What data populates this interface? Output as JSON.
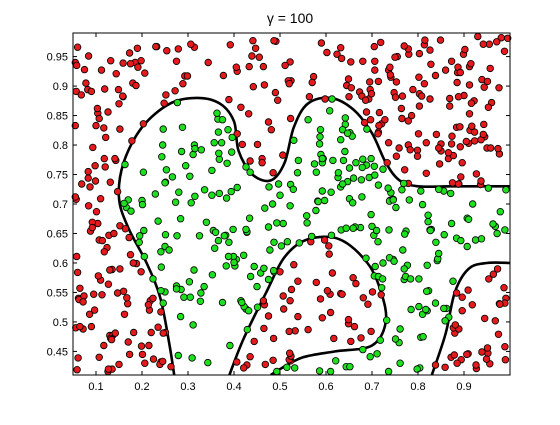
{
  "chart_data": {
    "type": "scatter",
    "title": "γ = 100",
    "xlabel": "",
    "ylabel": "",
    "xlim": [
      0.05,
      1.0
    ],
    "ylim": [
      0.41,
      0.99
    ],
    "xticks": [
      0.1,
      0.2,
      0.3,
      0.4,
      0.5,
      0.6,
      0.7,
      0.8,
      0.9
    ],
    "yticks": [
      0.45,
      0.5,
      0.55,
      0.6,
      0.65,
      0.7,
      0.75,
      0.8,
      0.85,
      0.9,
      0.95
    ],
    "grid": false,
    "legend": "none",
    "marker_edge_color": "#000000",
    "boundary_color": "#000000",
    "series": [
      {
        "color": "#e41a1c",
        "points": []
      },
      {
        "color": "#1fe01f",
        "points": []
      }
    ],
    "decision_boundary": [
      [
        [
          0.27,
          0.41
        ],
        [
          0.26,
          0.46
        ],
        [
          0.24,
          0.54
        ],
        [
          0.21,
          0.6
        ],
        [
          0.17,
          0.66
        ],
        [
          0.15,
          0.71
        ],
        [
          0.16,
          0.77
        ],
        [
          0.2,
          0.83
        ],
        [
          0.26,
          0.87
        ],
        [
          0.32,
          0.88
        ],
        [
          0.37,
          0.87
        ],
        [
          0.4,
          0.84
        ],
        [
          0.41,
          0.79
        ],
        [
          0.44,
          0.75
        ],
        [
          0.48,
          0.74
        ],
        [
          0.51,
          0.77
        ],
        [
          0.53,
          0.83
        ],
        [
          0.56,
          0.87
        ],
        [
          0.61,
          0.88
        ],
        [
          0.66,
          0.86
        ],
        [
          0.7,
          0.82
        ],
        [
          0.73,
          0.77
        ],
        [
          0.76,
          0.74
        ],
        [
          0.8,
          0.73
        ],
        [
          0.87,
          0.73
        ],
        [
          0.93,
          0.73
        ],
        [
          1.0,
          0.73
        ]
      ],
      [
        [
          0.39,
          0.41
        ],
        [
          0.42,
          0.47
        ],
        [
          0.47,
          0.55
        ],
        [
          0.51,
          0.61
        ],
        [
          0.56,
          0.64
        ],
        [
          0.63,
          0.64
        ],
        [
          0.69,
          0.6
        ],
        [
          0.72,
          0.55
        ],
        [
          0.73,
          0.5
        ],
        [
          0.7,
          0.46
        ],
        [
          0.62,
          0.45
        ],
        [
          0.55,
          0.44
        ],
        [
          0.5,
          0.42
        ],
        [
          0.48,
          0.41
        ]
      ],
      [
        [
          0.83,
          0.41
        ],
        [
          0.86,
          0.48
        ],
        [
          0.88,
          0.55
        ],
        [
          0.91,
          0.59
        ],
        [
          0.95,
          0.6
        ],
        [
          1.0,
          0.6
        ]
      ]
    ]
  }
}
